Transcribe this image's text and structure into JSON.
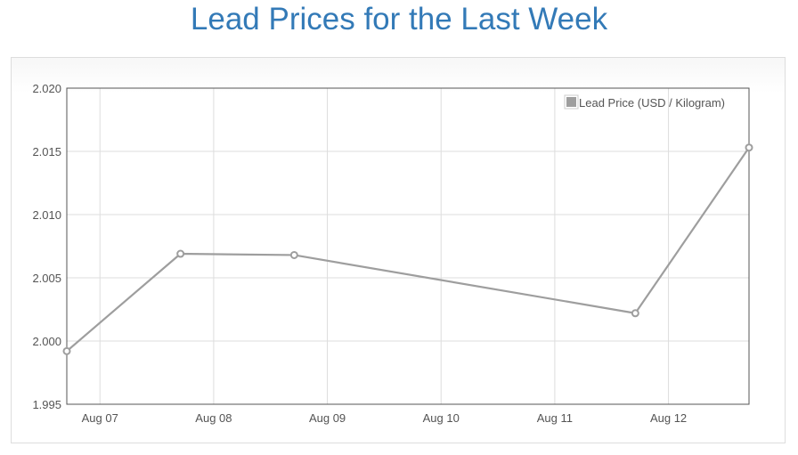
{
  "page": {
    "title": "Lead Prices for the Last Week"
  },
  "chart_data": {
    "type": "line",
    "title": "",
    "xlabel": "",
    "ylabel": "",
    "x_tick_labels": [
      "Aug 07",
      "Aug 08",
      "Aug 09",
      "Aug 10",
      "Aug 11",
      "Aug 12"
    ],
    "y_tick_labels": [
      "2.020",
      "2.015",
      "2.010",
      "2.005",
      "2.000",
      "1.995"
    ],
    "ylim": [
      1.995,
      2.02
    ],
    "xlim": [
      "2017-08-06 17:00",
      "2017-08-12 17:00"
    ],
    "grid": true,
    "legend_position": "top-right",
    "series": [
      {
        "name": "Lead Price (USD / Kilogram)",
        "color": "#9e9e9e",
        "points": [
          {
            "x": "2017-08-06 17:00",
            "y": 1.9992
          },
          {
            "x": "2017-08-07 17:00",
            "y": 2.0069
          },
          {
            "x": "2017-08-08 17:00",
            "y": 2.0068
          },
          {
            "x": "2017-08-11 17:00",
            "y": 2.0022
          },
          {
            "x": "2017-08-12 17:00",
            "y": 2.0153
          }
        ]
      }
    ]
  }
}
